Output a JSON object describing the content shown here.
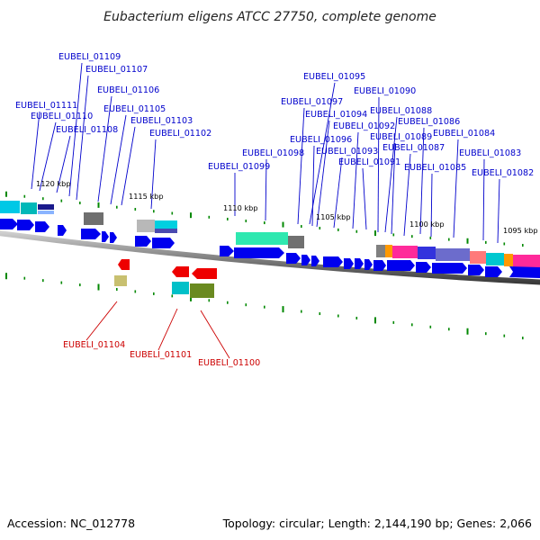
{
  "title": "Eubacterium eligens ATCC 27750, complete genome",
  "footer": {
    "accession": "Accession: NC_012778",
    "summary": "Topology: circular; Length: 2,144,190 bp; Genes: 2,066"
  },
  "colors": {
    "forward_gene": "#0000ee",
    "reverse_gene": "#ee0000",
    "label_top": "#0000cc",
    "label_bottom": "#cc0000",
    "ticks": "#008800",
    "backbone": "#777777"
  },
  "kbp_ticks": [
    "1120 kbp",
    "1115 kbp",
    "1110 kbp",
    "1105 kbp",
    "1100 kbp",
    "1095 kbp"
  ],
  "genes_top": [
    "EUBELI_01109",
    "EUBELI_01107",
    "EUBELI_01106",
    "EUBELI_01111",
    "EUBELI_01105",
    "EUBELI_01110",
    "EUBELI_01103",
    "EUBELI_01108",
    "EUBELI_01102",
    "EUBELI_01095",
    "EUBELI_01090",
    "EUBELI_01097",
    "EUBELI_01094",
    "EUBELI_01088",
    "EUBELI_01092",
    "EUBELI_01086",
    "EUBELI_01096",
    "EUBELI_01089",
    "EUBELI_01084",
    "EUBELI_01093",
    "EUBELI_01087",
    "EUBELI_01098",
    "EUBELI_01091",
    "EUBELI_01083",
    "EUBELI_01099",
    "EUBELI_01085",
    "EUBELI_01082"
  ],
  "genes_bottom": [
    "EUBELI_01104",
    "EUBELI_01101",
    "EUBELI_01100"
  ]
}
